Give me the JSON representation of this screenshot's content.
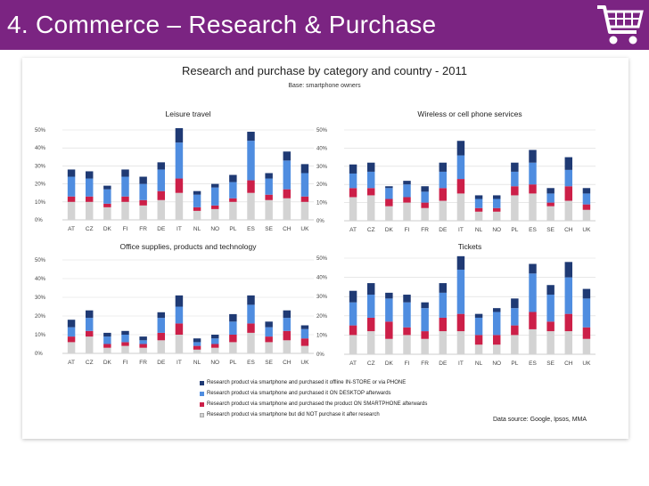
{
  "slide_title": "4.  Commerce – Research & Purchase",
  "main_title": "Research and purchase by category and country - 2011",
  "subtitle": "Base: smartphone owners",
  "data_source": "Data source: Google, Ipsos, MMA",
  "icon": "shopping-cart-icon",
  "colors": {
    "titlebar": "#7b2482",
    "not_purchased": "#d3d3d3",
    "smartphone": "#cc1f48",
    "desktop": "#4f8de0",
    "instore": "#1f3a74"
  },
  "legend": [
    "Research product via smartphone and purchased it offline IN-STORE or via PHONE",
    "Research product via smartphone and purchased it ON DESKTOP afterwards",
    "Research product via smartphone and purchased the product ON SMARTPHONE afterwards",
    "Research product via smartphone but did NOT purchase it after research"
  ],
  "chart_data": [
    {
      "type": "bar",
      "stacked": true,
      "title": "Leisure travel",
      "categories": [
        "AT",
        "CZ",
        "DK",
        "FI",
        "FR",
        "DE",
        "IT",
        "NL",
        "NO",
        "PL",
        "ES",
        "SE",
        "CH",
        "UK"
      ],
      "ylim": [
        0,
        50
      ],
      "yticks": [
        "0%",
        "10%",
        "20%",
        "30%",
        "40%",
        "50%"
      ],
      "series": [
        {
          "name": "Research product via smartphone but did NOT purchase it after research",
          "values": [
            10,
            10,
            7,
            10,
            8,
            11,
            15,
            5,
            6,
            10,
            15,
            11,
            12,
            10
          ]
        },
        {
          "name": "Research product via smartphone and purchased the product ON SMARTPHONE afterwards",
          "values": [
            3,
            3,
            2,
            3,
            3,
            5,
            8,
            2,
            2,
            2,
            7,
            3,
            5,
            3
          ]
        },
        {
          "name": "Research product via smartphone and purchased it ON DESKTOP afterwards",
          "values": [
            11,
            10,
            8,
            11,
            9,
            12,
            20,
            7,
            10,
            9,
            22,
            9,
            16,
            13
          ]
        },
        {
          "name": "Research product via smartphone and purchased it offline IN-STORE or via PHONE",
          "values": [
            4,
            4,
            2,
            4,
            4,
            4,
            8,
            2,
            2,
            4,
            5,
            3,
            5,
            5
          ]
        }
      ]
    },
    {
      "type": "bar",
      "stacked": true,
      "title": "Wireless or cell phone services",
      "categories": [
        "AT",
        "CZ",
        "DK",
        "FI",
        "FR",
        "DE",
        "IT",
        "NL",
        "NO",
        "PL",
        "ES",
        "SE",
        "CH",
        "UK"
      ],
      "ylim": [
        0,
        50
      ],
      "yticks": [
        "0%",
        "10%",
        "20%",
        "30%",
        "40%",
        "50%"
      ],
      "series": [
        {
          "name": "Research product via smartphone but did NOT purchase it after research",
          "values": [
            13,
            14,
            8,
            10,
            7,
            11,
            15,
            5,
            5,
            14,
            15,
            8,
            11,
            6
          ]
        },
        {
          "name": "Research product via smartphone and purchased the product ON SMARTPHONE afterwards",
          "values": [
            5,
            4,
            4,
            3,
            3,
            7,
            8,
            2,
            2,
            5,
            5,
            2,
            8,
            3
          ]
        },
        {
          "name": "Research product via smartphone and purchased it ON DESKTOP afterwards",
          "values": [
            8,
            9,
            6,
            7,
            6,
            9,
            13,
            5,
            5,
            8,
            12,
            5,
            9,
            6
          ]
        },
        {
          "name": "Research product via smartphone and purchased it offline IN-STORE or via PHONE",
          "values": [
            5,
            5,
            1,
            2,
            3,
            5,
            8,
            2,
            2,
            5,
            7,
            3,
            7,
            3
          ]
        }
      ]
    },
    {
      "type": "bar",
      "stacked": true,
      "title": "Office supplies, products and technology",
      "categories": [
        "AT",
        "CZ",
        "DK",
        "FI",
        "FR",
        "DE",
        "IT",
        "NL",
        "NO",
        "PL",
        "ES",
        "SE",
        "CH",
        "UK"
      ],
      "ylim": [
        0,
        50
      ],
      "yticks": [
        "0%",
        "10%",
        "20%",
        "30%",
        "40%",
        "50%"
      ],
      "series": [
        {
          "name": "Research product via smartphone but did NOT purchase it after research",
          "values": [
            6,
            9,
            3,
            4,
            3,
            7,
            10,
            2,
            3,
            6,
            11,
            6,
            7,
            4
          ]
        },
        {
          "name": "Research product via smartphone and purchased the product ON SMARTPHONE afterwards",
          "values": [
            3,
            3,
            2,
            2,
            2,
            4,
            6,
            2,
            2,
            4,
            5,
            3,
            5,
            4
          ]
        },
        {
          "name": "Research product via smartphone and purchased it ON DESKTOP afterwards",
          "values": [
            5,
            7,
            4,
            4,
            2,
            8,
            9,
            2,
            3,
            7,
            10,
            5,
            7,
            5
          ]
        },
        {
          "name": "Research product via smartphone and purchased it offline IN-STORE or via PHONE",
          "values": [
            4,
            4,
            2,
            2,
            2,
            3,
            6,
            2,
            2,
            4,
            5,
            3,
            4,
            2
          ]
        }
      ]
    },
    {
      "type": "bar",
      "stacked": true,
      "title": "Tickets",
      "categories": [
        "AT",
        "CZ",
        "DK",
        "FI",
        "FR",
        "DE",
        "IT",
        "NL",
        "NO",
        "PL",
        "ES",
        "SE",
        "CH",
        "UK"
      ],
      "ylim": [
        0,
        50
      ],
      "yticks": [
        "0%",
        "10%",
        "20%",
        "30%",
        "40%",
        "50%"
      ],
      "series": [
        {
          "name": "Research product via smartphone but did NOT purchase it after research",
          "values": [
            10,
            12,
            8,
            10,
            8,
            12,
            12,
            5,
            5,
            10,
            13,
            12,
            12,
            8
          ]
        },
        {
          "name": "Research product via smartphone and purchased the product ON SMARTPHONE afterwards",
          "values": [
            5,
            7,
            9,
            4,
            4,
            7,
            9,
            5,
            5,
            5,
            9,
            5,
            9,
            6
          ]
        },
        {
          "name": "Research product via smartphone and purchased it ON DESKTOP afterwards",
          "values": [
            12,
            12,
            12,
            13,
            12,
            13,
            23,
            9,
            12,
            9,
            20,
            14,
            19,
            15
          ]
        },
        {
          "name": "Research product via smartphone and purchased it offline IN-STORE or via PHONE",
          "values": [
            6,
            6,
            3,
            4,
            3,
            5,
            7,
            2,
            2,
            5,
            5,
            5,
            8,
            5
          ]
        }
      ]
    }
  ]
}
